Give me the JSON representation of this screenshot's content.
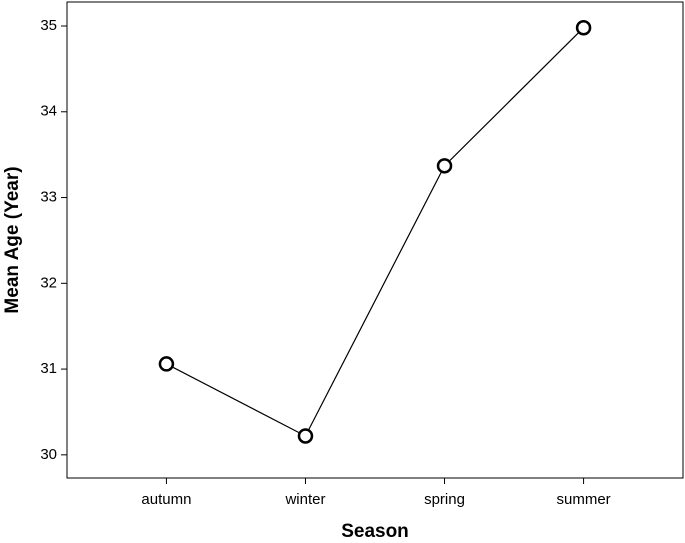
{
  "chart_data": {
    "type": "line",
    "x_label": "Season",
    "y_label": "Mean Age (Year)",
    "categories": [
      "autumn",
      "winter",
      "spring",
      "summer"
    ],
    "values": [
      31.06,
      30.22,
      33.37,
      34.98
    ],
    "color": "#000000",
    "ylim": [
      29.73,
      35.28
    ],
    "yticks": [
      30,
      31,
      32,
      33,
      34,
      35
    ],
    "grid": false
  }
}
